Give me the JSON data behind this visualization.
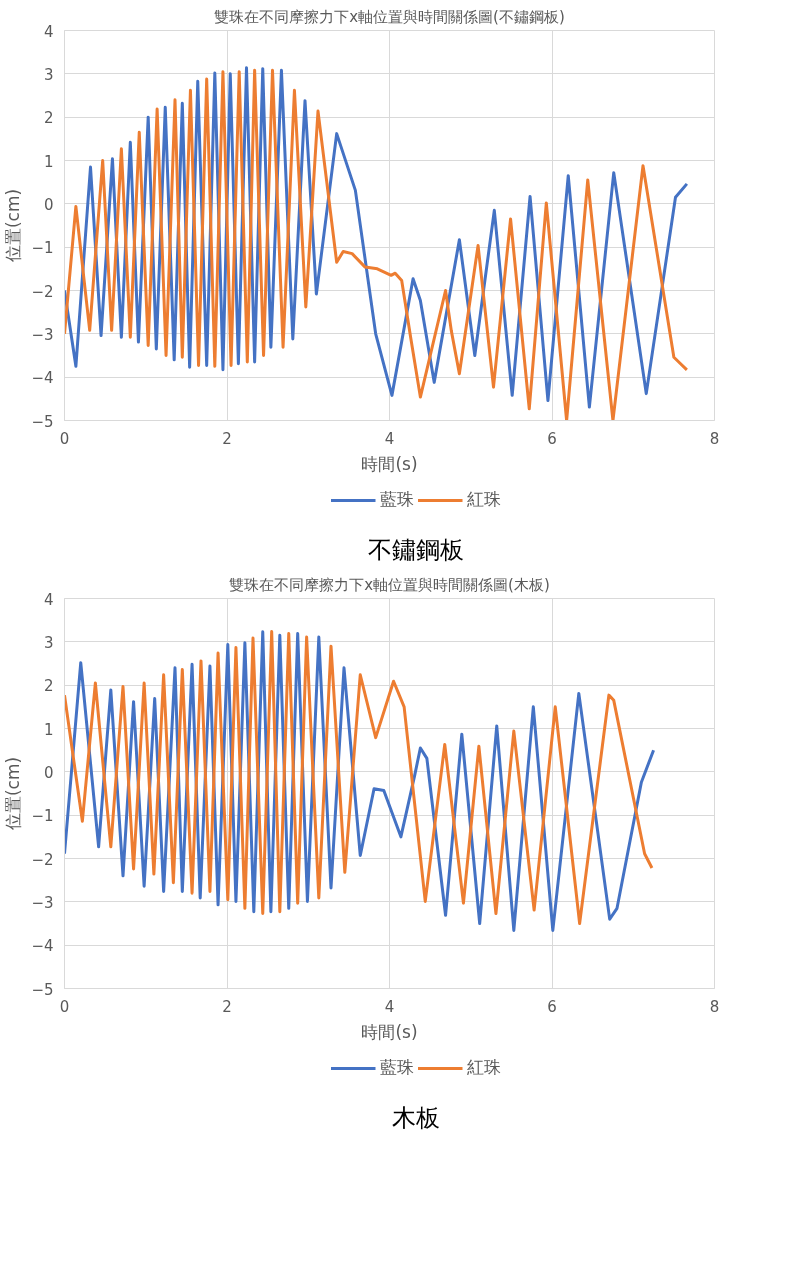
{
  "chart_data": [
    {
      "type": "line",
      "title": "雙珠在不同摩擦力下x軸位置與時間關係圖(不鏽鋼板)",
      "xlabel": "時間(s)",
      "ylabel": "位置(cm)",
      "xlim": [
        0,
        8
      ],
      "ylim": [
        -5,
        4
      ],
      "xticks": [
        0,
        2,
        4,
        6,
        8
      ],
      "yticks": [
        -5,
        -4,
        -3,
        -2,
        -1,
        0,
        1,
        2,
        3,
        4
      ],
      "grid": true,
      "legend": "bottom",
      "marker": "none",
      "line_style": "solid",
      "annotations": [
        "不鏽鋼板"
      ],
      "series": [
        {
          "name": "藍珠",
          "color": "#4472c4",
          "x": [
            0,
            0.14,
            0.32,
            0.45,
            0.59,
            0.7,
            0.81,
            0.91,
            1.03,
            1.13,
            1.24,
            1.35,
            1.45,
            1.54,
            1.64,
            1.75,
            1.85,
            1.95,
            2.04,
            2.14,
            2.24,
            2.34,
            2.44,
            2.54,
            2.67,
            2.81,
            2.96,
            3.1,
            3.35,
            3.58,
            3.83,
            4.03,
            4.29,
            4.38,
            4.55,
            4.86,
            5.05,
            5.29,
            5.51,
            5.73,
            5.95,
            6.2,
            6.46,
            6.76,
            7.16,
            7.52,
            7.66
          ],
          "values": [
            -2.0,
            -3.75,
            0.85,
            -3.04,
            1.04,
            -3.08,
            1.42,
            -3.19,
            2.0,
            -3.35,
            2.23,
            -3.6,
            2.32,
            -3.77,
            2.83,
            -3.73,
            3.02,
            -3.83,
            3.0,
            -3.69,
            3.14,
            -3.65,
            3.12,
            -3.31,
            3.08,
            -3.12,
            2.38,
            -2.08,
            1.62,
            0.31,
            -3.0,
            -4.42,
            -1.73,
            -2.23,
            -4.12,
            -0.83,
            -3.5,
            -0.15,
            -4.42,
            0.17,
            -4.54,
            0.65,
            -4.69,
            0.72,
            -4.38,
            0.15,
            0.46
          ]
        },
        {
          "name": "紅珠",
          "color": "#ed7d31",
          "x": [
            0,
            0.14,
            0.31,
            0.47,
            0.58,
            0.7,
            0.81,
            0.92,
            1.03,
            1.14,
            1.25,
            1.36,
            1.45,
            1.55,
            1.65,
            1.75,
            1.85,
            1.95,
            2.05,
            2.15,
            2.25,
            2.34,
            2.45,
            2.56,
            2.69,
            2.83,
            2.97,
            3.12,
            3.35,
            3.43,
            3.54,
            3.7,
            3.85,
            4.02,
            4.07,
            4.15,
            4.26,
            4.38,
            4.69,
            4.76,
            4.86,
            5.09,
            5.28,
            5.49,
            5.72,
            5.93,
            6.18,
            6.44,
            6.75,
            7.12,
            7.5,
            7.56,
            7.66
          ],
          "values": [
            -3.0,
            -0.06,
            -2.92,
            1.0,
            -2.92,
            1.27,
            -3.08,
            1.65,
            -3.27,
            2.19,
            -3.5,
            2.4,
            -3.54,
            2.62,
            -3.73,
            2.88,
            -3.75,
            3.05,
            -3.73,
            3.05,
            -3.65,
            3.08,
            -3.5,
            3.08,
            -3.31,
            2.62,
            -2.38,
            2.14,
            -1.35,
            -1.1,
            -1.15,
            -1.46,
            -1.5,
            -1.65,
            -1.6,
            -1.77,
            -3.08,
            -4.46,
            -2.0,
            -2.92,
            -3.92,
            -0.96,
            -4.23,
            -0.35,
            -4.73,
            0.02,
            -5.0,
            0.55,
            -5.0,
            0.88,
            -3.54,
            -3.65,
            -3.83
          ]
        }
      ]
    },
    {
      "type": "line",
      "title": "雙珠在不同摩擦力下x軸位置與時間關係圖(木板)",
      "xlabel": "時間(s)",
      "ylabel": "位置(cm)",
      "xlim": [
        0,
        8
      ],
      "ylim": [
        -5,
        4
      ],
      "xticks": [
        0,
        2,
        4,
        6,
        8
      ],
      "yticks": [
        -5,
        -4,
        -3,
        -2,
        -1,
        0,
        1,
        2,
        3,
        4
      ],
      "grid": true,
      "legend": "bottom",
      "marker": "none",
      "line_style": "solid",
      "annotations": [
        "木板"
      ],
      "series": [
        {
          "name": "藍珠",
          "color": "#4472c4",
          "x": [
            0,
            0.2,
            0.42,
            0.57,
            0.72,
            0.85,
            0.98,
            1.11,
            1.22,
            1.36,
            1.45,
            1.57,
            1.67,
            1.79,
            1.89,
            2.01,
            2.11,
            2.22,
            2.33,
            2.44,
            2.54,
            2.65,
            2.76,
            2.87,
            2.99,
            3.13,
            3.28,
            3.44,
            3.64,
            3.81,
            3.93,
            4.14,
            4.31,
            4.38,
            4.46,
            4.69,
            4.89,
            5.11,
            5.32,
            5.53,
            5.77,
            6.01,
            6.33,
            6.71,
            6.8,
            7.1,
            7.25
          ],
          "values": [
            -1.89,
            2.52,
            -1.73,
            1.89,
            -2.4,
            1.62,
            -2.64,
            1.69,
            -2.76,
            2.4,
            -2.76,
            2.48,
            -2.91,
            2.44,
            -3.07,
            2.94,
            -2.99,
            2.98,
            -3.23,
            3.23,
            -3.23,
            3.15,
            -3.15,
            3.19,
            -2.99,
            3.11,
            -2.68,
            2.4,
            -1.93,
            -0.39,
            -0.43,
            -1.5,
            -0.08,
            0.55,
            0.31,
            -3.31,
            0.87,
            -3.5,
            1.06,
            -3.66,
            1.5,
            -3.66,
            1.81,
            -3.4,
            -3.15,
            -0.24,
            0.5
          ]
        },
        {
          "name": "紅珠",
          "color": "#ed7d31",
          "x": [
            0,
            0.22,
            0.38,
            0.57,
            0.72,
            0.85,
            0.98,
            1.1,
            1.22,
            1.34,
            1.45,
            1.57,
            1.68,
            1.79,
            1.89,
            2.01,
            2.11,
            2.22,
            2.32,
            2.44,
            2.55,
            2.65,
            2.76,
            2.87,
            2.98,
            3.13,
            3.28,
            3.45,
            3.64,
            3.83,
            4.05,
            4.18,
            4.44,
            4.68,
            4.91,
            5.1,
            5.31,
            5.53,
            5.78,
            6.04,
            6.34,
            6.7,
            6.76,
            7.14,
            7.23
          ],
          "values": [
            1.77,
            -1.14,
            2.05,
            -1.73,
            1.97,
            -2.24,
            2.05,
            -2.36,
            2.24,
            -2.56,
            2.36,
            -2.8,
            2.56,
            -2.76,
            2.74,
            -2.95,
            2.87,
            -3.15,
            3.09,
            -3.27,
            3.24,
            -3.23,
            3.19,
            -3.03,
            3.11,
            -2.91,
            2.9,
            -2.32,
            2.24,
            0.79,
            2.09,
            1.5,
            -2.99,
            0.63,
            -3.03,
            0.59,
            -3.27,
            0.94,
            -3.19,
            1.5,
            -3.5,
            1.77,
            1.65,
            -1.89,
            -2.22
          ]
        }
      ]
    }
  ]
}
